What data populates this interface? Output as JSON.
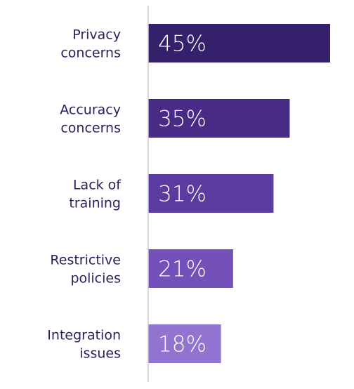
{
  "chart_data": {
    "type": "bar",
    "orientation": "horizontal",
    "title": "",
    "xlabel": "",
    "ylabel": "",
    "categories": [
      [
        "Privacy",
        "concerns"
      ],
      [
        "Accuracy",
        "concerns"
      ],
      [
        "Lack of",
        "training"
      ],
      [
        "Restrictive",
        "policies"
      ],
      [
        "Integration",
        "issues"
      ]
    ],
    "values": [
      45,
      35,
      31,
      21,
      18
    ],
    "value_labels": [
      "45%",
      "35%",
      "31%",
      "21%",
      "18%"
    ],
    "bar_colors": [
      "#34206b",
      "#482a87",
      "#5b3ba0",
      "#7451b8",
      "#9074d0"
    ],
    "label_color": "#2e1c5c",
    "axis_color": "#c8c8c8",
    "xlim": [
      0,
      45
    ],
    "grid": false,
    "legend": "none"
  }
}
